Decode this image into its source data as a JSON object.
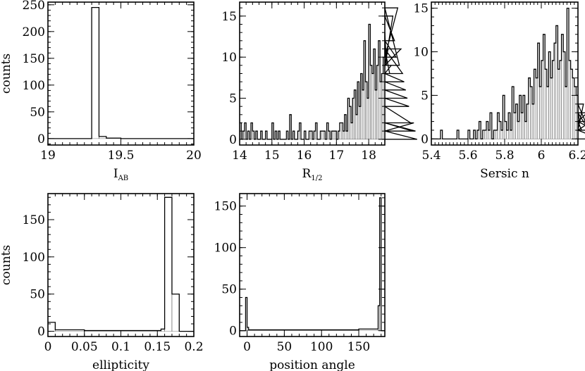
{
  "chart_data": [
    {
      "type": "histogram",
      "id": "iab",
      "xlabel": "I",
      "xlabel_sub": "AB",
      "ylabel": "counts",
      "xlim": [
        19,
        20
      ],
      "ylim": [
        -12,
        255
      ],
      "xticks": [
        {
          "v": 19,
          "t": "19"
        },
        {
          "v": 19.5,
          "t": "19.5"
        },
        {
          "v": 20,
          "t": "20"
        }
      ],
      "xminor": 0.05,
      "yticks": [
        {
          "v": 0,
          "t": "0"
        },
        {
          "v": 50,
          "t": "50"
        },
        {
          "v": 100,
          "t": "100"
        },
        {
          "v": 150,
          "t": "150"
        },
        {
          "v": 200,
          "t": "200"
        },
        {
          "v": 250,
          "t": "250"
        }
      ],
      "yminor": 10,
      "edges": [
        19.0,
        19.3,
        19.35,
        19.4,
        19.5,
        20.0
      ],
      "counts": [
        0,
        245,
        4,
        1,
        0
      ]
    },
    {
      "type": "histogram",
      "id": "r12",
      "xlabel": "R",
      "xlabel_sub": "1/2",
      "ylabel": "",
      "xlim": [
        14,
        18.5
      ],
      "ylim": [
        -0.7,
        16.7
      ],
      "xticks": [
        {
          "v": 14,
          "t": "14"
        },
        {
          "v": 15,
          "t": "15"
        },
        {
          "v": 16,
          "t": "16"
        },
        {
          "v": 17,
          "t": "17"
        },
        {
          "v": 18,
          "t": "18"
        }
      ],
      "xminor": 0.2,
      "yticks": [
        {
          "v": 0,
          "t": "0"
        },
        {
          "v": 5,
          "t": "5"
        },
        {
          "v": 10,
          "t": "10"
        },
        {
          "v": 15,
          "t": "15"
        }
      ],
      "yminor": 1,
      "bin_start": 14.0,
      "bin_width": 0.05,
      "counts": [
        2,
        0,
        1,
        2,
        0,
        1,
        0,
        2,
        1,
        0,
        1,
        0,
        0,
        1,
        0,
        0,
        1,
        0,
        0,
        0,
        2,
        0,
        1,
        0,
        1,
        0,
        0,
        0,
        0,
        1,
        0,
        3,
        0,
        1,
        0,
        0,
        1,
        2,
        0,
        0,
        1,
        0,
        0,
        1,
        1,
        0,
        1,
        2,
        0,
        0,
        1,
        1,
        1,
        0,
        2,
        1,
        0,
        1,
        1,
        1,
        0,
        1,
        2,
        2,
        1,
        3,
        1,
        5,
        4,
        2,
        5,
        6,
        3,
        7,
        4,
        8,
        6,
        12,
        7,
        5,
        14,
        9,
        8,
        11,
        6,
        9,
        12,
        7,
        8,
        10,
        13,
        9,
        11,
        8,
        9,
        15,
        12,
        10,
        16,
        9,
        11,
        8,
        7,
        6,
        5,
        4,
        2,
        1,
        2,
        1,
        0
      ]
    },
    {
      "type": "histogram",
      "id": "sersic",
      "xlabel": "Sersic n",
      "xlabel_sub": "",
      "ylabel": "",
      "xlim": [
        5.4,
        6.2
      ],
      "ylim": [
        -0.7,
        15.7
      ],
      "xticks": [
        {
          "v": 5.4,
          "t": "5.4"
        },
        {
          "v": 5.6,
          "t": "5.6"
        },
        {
          "v": 5.8,
          "t": "5.8"
        },
        {
          "v": 6,
          "t": "6"
        },
        {
          "v": 6.2,
          "t": "6.2"
        }
      ],
      "xminor": 0.02,
      "yticks": [
        {
          "v": 0,
          "t": "0"
        },
        {
          "v": 5,
          "t": "5"
        },
        {
          "v": 10,
          "t": "10"
        },
        {
          "v": 15,
          "t": "15"
        }
      ],
      "yminor": 1,
      "bin_start": 5.4,
      "bin_width": 0.01,
      "counts": [
        0,
        0,
        0,
        0,
        0,
        1,
        0,
        0,
        0,
        0,
        0,
        0,
        0,
        0,
        1,
        0,
        0,
        0,
        0,
        0,
        1,
        0,
        0,
        1,
        0,
        1,
        2,
        0,
        1,
        1,
        2,
        1,
        3,
        0,
        1,
        1,
        3,
        2,
        1,
        5,
        2,
        1,
        3,
        1,
        6,
        3,
        4,
        2,
        5,
        3,
        5,
        2,
        4,
        7,
        6,
        4,
        8,
        7,
        11,
        6,
        9,
        12,
        8,
        6,
        10,
        7,
        9,
        11,
        13,
        8,
        9,
        12,
        10,
        6,
        15,
        9,
        8,
        7,
        6,
        5,
        3,
        2,
        1,
        4,
        2,
        3,
        1,
        2,
        2,
        1,
        1,
        1,
        0,
        0,
        0,
        0,
        0,
        0,
        0,
        0
      ]
    },
    {
      "type": "histogram",
      "id": "ellipticity",
      "xlabel": "ellipticity",
      "xlabel_sub": "",
      "ylabel": "counts",
      "xlim": [
        0,
        0.2
      ],
      "ylim": [
        -7,
        185
      ],
      "xticks": [
        {
          "v": 0,
          "t": "0"
        },
        {
          "v": 0.05,
          "t": "0.05"
        },
        {
          "v": 0.1,
          "t": "0.1"
        },
        {
          "v": 0.15,
          "t": "0.15"
        },
        {
          "v": 0.2,
          "t": "0.2"
        }
      ],
      "xminor": 0.01,
      "yticks": [
        {
          "v": 0,
          "t": "0"
        },
        {
          "v": 50,
          "t": "50"
        },
        {
          "v": 100,
          "t": "100"
        },
        {
          "v": 150,
          "t": "150"
        }
      ],
      "yminor": 10,
      "edges": [
        0.0,
        0.01,
        0.05,
        0.155,
        0.16,
        0.17,
        0.18,
        0.2
      ],
      "counts": [
        12,
        2,
        1,
        3,
        180,
        50,
        0
      ]
    },
    {
      "type": "histogram",
      "id": "pa",
      "xlabel": "position angle",
      "xlabel_sub": "",
      "ylabel": "",
      "xlim": [
        -10,
        185
      ],
      "ylim": [
        -7,
        165
      ],
      "xticks": [
        {
          "v": 0,
          "t": "0"
        },
        {
          "v": 50,
          "t": "50"
        },
        {
          "v": 100,
          "t": "100"
        },
        {
          "v": 150,
          "t": "150"
        }
      ],
      "xminor": 10,
      "yticks": [
        {
          "v": 0,
          "t": "0"
        },
        {
          "v": 50,
          "t": "50"
        },
        {
          "v": 100,
          "t": "100"
        },
        {
          "v": 150,
          "t": "150"
        }
      ],
      "yminor": 10,
      "edges": [
        -10,
        -2,
        0,
        2,
        50,
        100,
        150,
        176,
        178,
        180,
        185
      ],
      "counts": [
        0,
        40,
        4,
        1,
        1,
        1,
        2,
        30,
        160,
        0
      ]
    }
  ]
}
